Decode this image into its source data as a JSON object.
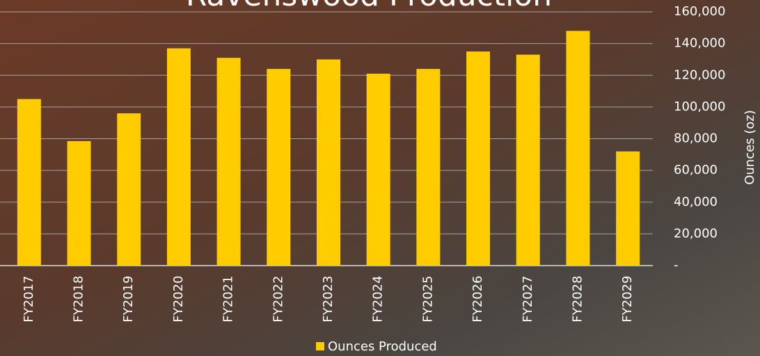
{
  "chart_data": {
    "type": "bar",
    "title": "Ravenswood Production",
    "categories": [
      "FY2017",
      "FY2018",
      "FY2019",
      "FY2020",
      "FY2021",
      "FY2022",
      "FY2023",
      "FY2024",
      "FY2025",
      "FY2026",
      "FY2027",
      "FY2028",
      "FY2029"
    ],
    "series": [
      {
        "name": "Ounces Produced",
        "color": "#ffcc00",
        "values": [
          105000,
          78500,
          96000,
          137000,
          131000,
          124000,
          130000,
          121000,
          124000,
          135000,
          133000,
          148000,
          72000
        ]
      }
    ],
    "y_label": "Ounces (oz)",
    "ylim": [
      0,
      160000
    ],
    "yticks": [
      {
        "value": 0,
        "label": "-"
      },
      {
        "value": 20000,
        "label": "20,000"
      },
      {
        "value": 40000,
        "label": "40,000"
      },
      {
        "value": 60000,
        "label": "60,000"
      },
      {
        "value": 80000,
        "label": "80,000"
      },
      {
        "value": 100000,
        "label": "100,000"
      },
      {
        "value": 120000,
        "label": "120,000"
      },
      {
        "value": 140000,
        "label": "140,000"
      },
      {
        "value": 160000,
        "label": "160,000"
      }
    ],
    "grid": true,
    "legend": "bottom"
  }
}
